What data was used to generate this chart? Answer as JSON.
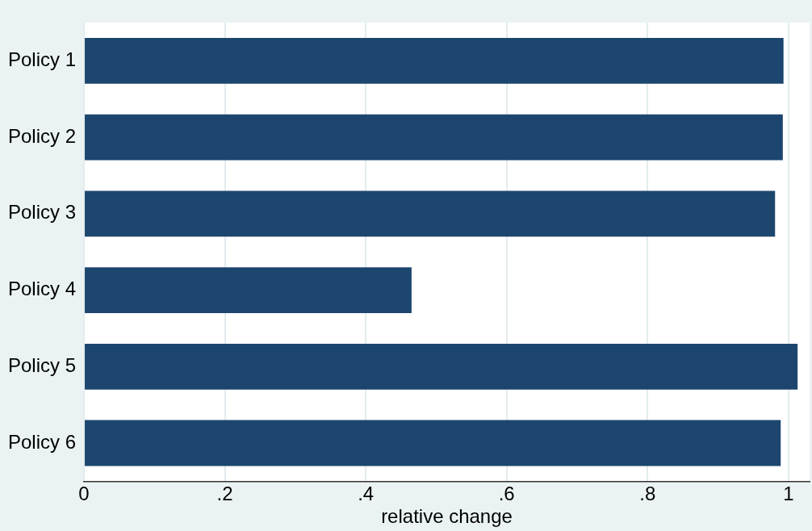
{
  "chart_data": {
    "type": "bar",
    "orientation": "horizontal",
    "xlabel": "relative change",
    "categories": [
      "Policy 1",
      "Policy 2",
      "Policy 3",
      "Policy 4",
      "Policy 5",
      "Policy 6"
    ],
    "values": [
      0.993,
      0.992,
      0.981,
      0.465,
      1.013,
      0.989
    ],
    "color": "#1c466e",
    "xlim": [
      0,
      1.03
    ],
    "xticks": [
      0,
      {
        "value": 0.2,
        "label": ".2"
      },
      {
        "value": 0.4,
        "label": ".4"
      },
      {
        "value": 0.6,
        "label": ".6"
      },
      {
        "value": 0.8,
        "label": ".8"
      },
      1
    ],
    "grid": "x",
    "legend": false
  }
}
